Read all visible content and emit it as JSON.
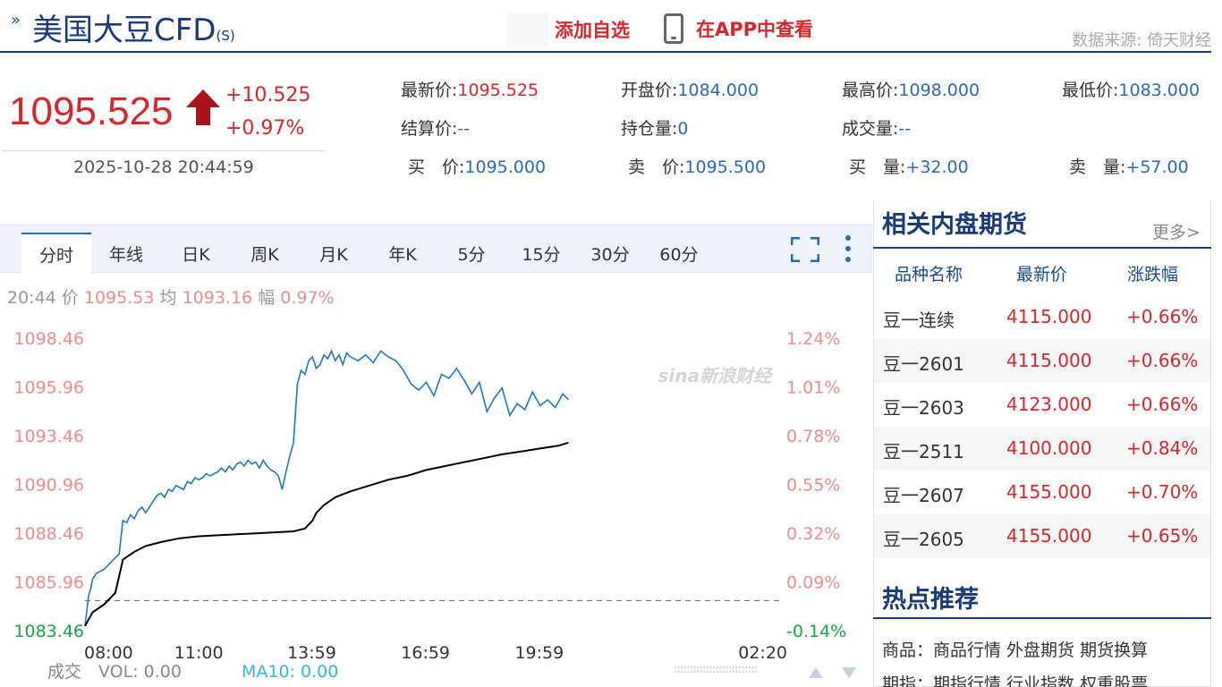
{
  "header": {
    "chevron": "»",
    "title": "美国大豆CFD",
    "title_suffix": "(S)",
    "add_favorite": "添加自选",
    "view_in_app": "在APP中查看",
    "source": "数据来源: 倚天财经"
  },
  "quote": {
    "price": "1095.525",
    "change": "+10.525",
    "change_pct": "+0.97%",
    "timestamp": "2025-10-28 20:44:59",
    "fields": [
      {
        "label": "最新价:",
        "value": "1095.525",
        "red": true
      },
      {
        "label": "开盘价:",
        "value": "1084.000"
      },
      {
        "label": "最高价:",
        "value": "1098.000"
      },
      {
        "label": "最低价:",
        "value": "1083.000"
      },
      {
        "label": "结算价:",
        "value": "--"
      },
      {
        "label": "持仓量:",
        "value": "0"
      },
      {
        "label": "成交量:",
        "value": "--"
      },
      {
        "label": "",
        "value": ""
      },
      {
        "label": "买　价:",
        "value": "1095.000"
      },
      {
        "label": "卖　价:",
        "value": "1095.500"
      },
      {
        "label": "买　量:",
        "value": "+32.00"
      },
      {
        "label": "卖　量:",
        "value": "+57.00"
      }
    ]
  },
  "tabs": [
    "分时",
    "年线",
    "日K",
    "周K",
    "月K",
    "年K",
    "5分",
    "15分",
    "30分",
    "60分"
  ],
  "active_tab": 0,
  "chart_info": {
    "time": "20:44",
    "price_label": "价",
    "price": "1095.53",
    "avg_label": "均",
    "avg": "1093.16",
    "amp_label": "幅",
    "amp": "0.97%"
  },
  "chart_data": {
    "type": "line",
    "watermark": "sina新浪财经",
    "y_left_ticks": [
      "1098.46",
      "1095.96",
      "1093.46",
      "1090.96",
      "1088.46",
      "1085.96",
      "1083.46"
    ],
    "y_right_ticks": [
      "1.24%",
      "1.01%",
      "0.78%",
      "0.55%",
      "0.32%",
      "0.09%",
      "-0.14%"
    ],
    "x_ticks": [
      "08:00",
      "11:00",
      "13:59",
      "16:59",
      "19:59",
      "02:20"
    ],
    "ylim": [
      1083.46,
      1098.46
    ],
    "prev_close": 1085.0,
    "series": [
      {
        "color": "#1f78c1",
        "x": [
          0,
          0.05,
          0.1,
          0.15,
          0.2,
          0.3,
          0.4,
          0.5,
          0.6,
          0.7,
          0.8,
          0.9,
          1.0,
          1.1,
          1.2,
          1.3,
          1.4,
          1.5,
          1.6,
          1.7,
          1.8,
          1.9,
          2.0,
          2.1,
          2.2,
          2.3,
          2.4,
          2.5,
          2.6,
          2.7,
          2.8,
          2.9,
          3.0,
          3.1,
          3.2,
          3.3,
          3.4,
          3.5,
          3.6,
          3.7,
          3.8,
          3.9,
          4.0,
          4.1,
          4.2,
          4.3,
          4.4,
          4.5,
          4.6,
          4.7,
          4.8,
          4.9,
          5.0,
          5.1,
          5.2,
          5.3,
          5.4,
          5.5,
          5.6,
          5.7,
          5.8,
          5.9,
          6.0,
          6.05,
          6.1,
          6.2,
          6.3,
          6.4,
          6.5,
          6.6,
          6.7,
          6.8,
          6.9,
          7.0,
          7.2,
          7.4,
          7.6,
          7.8,
          8.0,
          8.2,
          8.4,
          8.6,
          8.8,
          9.0,
          9.2,
          9.4,
          9.6,
          9.8,
          10.0,
          10.2,
          10.4,
          10.6,
          10.8,
          11.0,
          11.2,
          11.4,
          11.6,
          11.8,
          12.0,
          12.2,
          12.4,
          12.6,
          12.75
        ],
        "values": [
          1083.7,
          1084.5,
          1085.3,
          1085.6,
          1086.1,
          1086.4,
          1086.5,
          1086.6,
          1086.8,
          1087.0,
          1087.2,
          1087.4,
          1089.1,
          1089.0,
          1089.4,
          1089.2,
          1089.6,
          1089.8,
          1089.5,
          1089.8,
          1090.1,
          1090.4,
          1090.5,
          1090.3,
          1090.7,
          1090.6,
          1090.9,
          1090.8,
          1090.7,
          1091.1,
          1091.0,
          1091.3,
          1091.2,
          1091.3,
          1091.5,
          1091.4,
          1091.5,
          1091.6,
          1091.8,
          1091.6,
          1091.9,
          1091.7,
          1092.0,
          1092.1,
          1091.9,
          1092.2,
          1092.0,
          1092.1,
          1091.8,
          1092.2,
          1091.9,
          1091.7,
          1091.6,
          1091.4,
          1090.7,
          1091.6,
          1092.4,
          1093.1,
          1096.1,
          1096.8,
          1096.6,
          1097.3,
          1097.5,
          1097.2,
          1096.9,
          1097.1,
          1097.6,
          1097.4,
          1097.8,
          1097.3,
          1097.6,
          1097.1,
          1097.7,
          1097.5,
          1097.3,
          1097.6,
          1097.2,
          1097.8,
          1097.5,
          1097.3,
          1096.8,
          1096.1,
          1095.8,
          1096.2,
          1095.5,
          1096.6,
          1096.4,
          1096.9,
          1096.3,
          1095.6,
          1096.2,
          1094.7,
          1095.4,
          1095.9,
          1094.5,
          1095.1,
          1094.8,
          1095.7,
          1095.0,
          1095.3,
          1094.9,
          1095.6,
          1095.3
        ]
      },
      {
        "color": "#000000",
        "x": [
          0,
          0.2,
          0.5,
          0.8,
          1.0,
          1.3,
          1.6,
          2.0,
          2.5,
          3.0,
          3.5,
          4.0,
          4.5,
          5.0,
          5.5,
          5.8,
          6.0,
          6.1,
          6.3,
          6.6,
          7.0,
          7.5,
          8.0,
          8.5,
          9.0,
          9.5,
          10.0,
          10.5,
          11.0,
          11.5,
          12.0,
          12.5,
          12.75
        ],
        "values": [
          1083.7,
          1084.4,
          1084.8,
          1085.4,
          1087.1,
          1087.5,
          1087.8,
          1088.0,
          1088.2,
          1088.3,
          1088.35,
          1088.4,
          1088.45,
          1088.5,
          1088.55,
          1088.7,
          1089.1,
          1089.5,
          1089.9,
          1090.3,
          1090.6,
          1090.9,
          1091.2,
          1091.4,
          1091.7,
          1091.9,
          1092.1,
          1092.3,
          1092.5,
          1092.65,
          1092.8,
          1092.95,
          1093.1
        ]
      }
    ],
    "x_range": [
      0,
      18.33
    ]
  },
  "volume": {
    "label": "成交",
    "vol": "VOL: 0.00",
    "ma10": "MA10: 0.00"
  },
  "related": {
    "title": "相关内盘期货",
    "more": "更多>",
    "columns": [
      "品种名称",
      "最新价",
      "涨跌幅"
    ],
    "rows": [
      {
        "name": "豆一连续",
        "price": "4115.000",
        "change": "+0.66%"
      },
      {
        "name": "豆一2601",
        "price": "4115.000",
        "change": "+0.66%"
      },
      {
        "name": "豆一2603",
        "price": "4123.000",
        "change": "+0.66%"
      },
      {
        "name": "豆一2511",
        "price": "4100.000",
        "change": "+0.84%"
      },
      {
        "name": "豆一2607",
        "price": "4155.000",
        "change": "+0.70%"
      },
      {
        "name": "豆一2605",
        "price": "4155.000",
        "change": "+0.65%"
      }
    ]
  },
  "hot": {
    "title": "热点推荐",
    "rows": [
      "商品：商品行情 外盘期货 期货换算",
      "期指：期指行情 行业指数 权重股票"
    ]
  },
  "colors": {
    "accent": "#1a3b7a",
    "up": "#d9262d",
    "link": "#2a6bb3",
    "down": "#1aa34a"
  }
}
